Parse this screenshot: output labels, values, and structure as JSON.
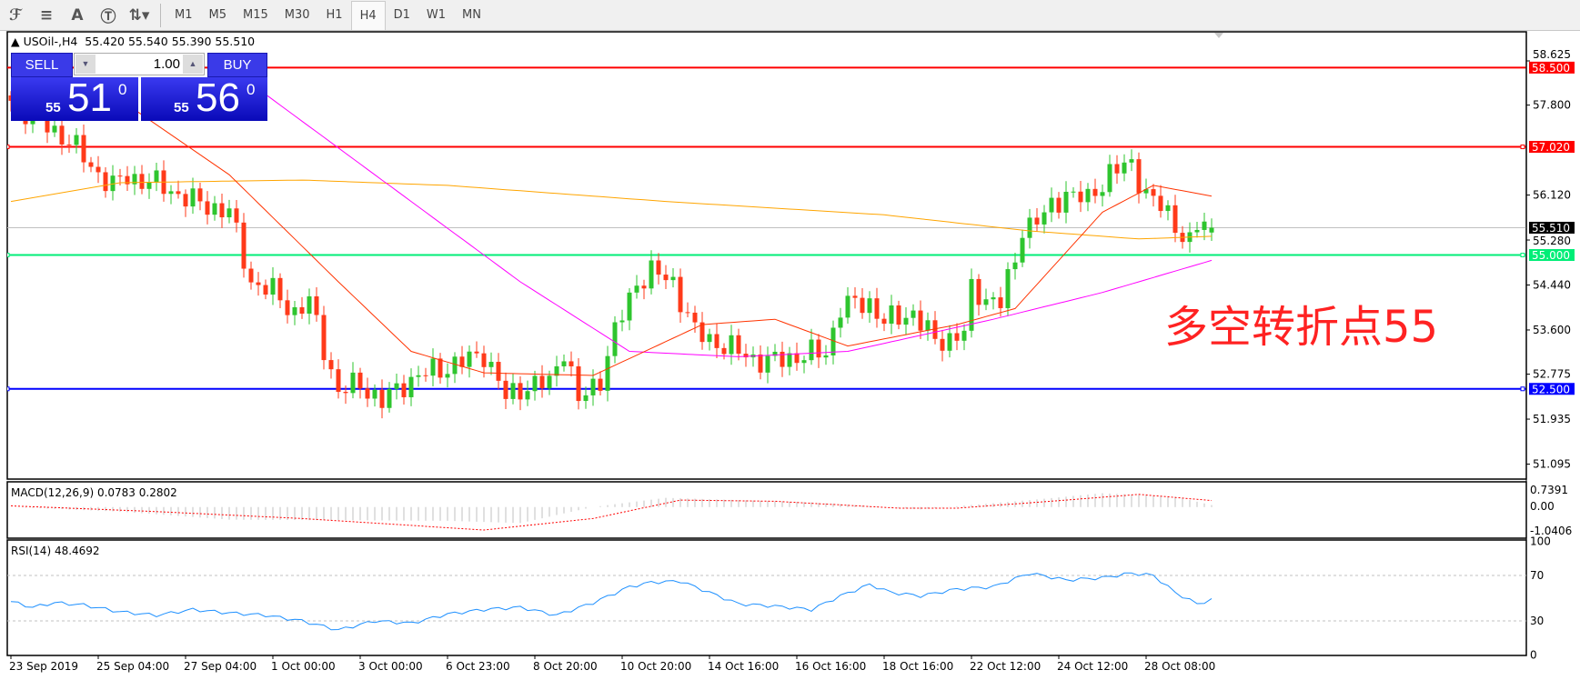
{
  "toolbar": {
    "icons": [
      "fibonacci-expansion-icon",
      "fibonacci-fan-icon",
      "text-icon",
      "text-label-icon",
      "arrows-icon"
    ],
    "timeframes": [
      "M1",
      "M5",
      "M15",
      "M30",
      "H1",
      "H4",
      "D1",
      "W1",
      "MN"
    ],
    "selected": "H4"
  },
  "header": {
    "symbol": "USOil-,H4",
    "ohlc": "55.420 55.540 55.390 55.510"
  },
  "trade": {
    "sell_label": "SELL",
    "buy_label": "BUY",
    "quantity": "1.00",
    "sell_prefix": "55",
    "sell_big": "51",
    "sell_sup": "0",
    "buy_prefix": "55",
    "buy_big": "56",
    "buy_sup": "0"
  },
  "annotation": "多空转折点55",
  "chart_data": {
    "type": "candlestick",
    "price_ticks": [
      "58.625",
      "57.800",
      "56.120",
      "55.280",
      "54.440",
      "53.600",
      "52.775",
      "51.935",
      "51.095"
    ],
    "time_labels": [
      "23 Sep 2019",
      "25 Sep 04:00",
      "27 Sep 04:00",
      "1 Oct 00:00",
      "3 Oct 00:00",
      "6 Oct 23:00",
      "8 Oct 20:00",
      "10 Oct 20:00",
      "14 Oct 16:00",
      "16 Oct 16:00",
      "18 Oct 16:00",
      "22 Oct 12:00",
      "24 Oct 12:00",
      "28 Oct 08:00"
    ],
    "bars_per_time_label": 12,
    "bar_count": 166,
    "close_checkpoints": [
      [
        0,
        57.88
      ],
      [
        8,
        57.13
      ],
      [
        11,
        56.66
      ],
      [
        14,
        56.28
      ],
      [
        16,
        56.47
      ],
      [
        21,
        56.28
      ],
      [
        25,
        56.0
      ],
      [
        30,
        55.81
      ],
      [
        33,
        54.5
      ],
      [
        36,
        54.31
      ],
      [
        39,
        53.93
      ],
      [
        41,
        54.12
      ],
      [
        45,
        52.43
      ],
      [
        48,
        52.61
      ],
      [
        51,
        52.24
      ],
      [
        54,
        52.61
      ],
      [
        58,
        52.84
      ],
      [
        62,
        52.99
      ],
      [
        65,
        53.18
      ],
      [
        68,
        52.33
      ],
      [
        70,
        52.52
      ],
      [
        74,
        52.61
      ],
      [
        76,
        53.27
      ],
      [
        78,
        52.24
      ],
      [
        81,
        52.71
      ],
      [
        83,
        53.55
      ],
      [
        86,
        54.5
      ],
      [
        88,
        54.68
      ],
      [
        91,
        54.5
      ],
      [
        94,
        53.55
      ],
      [
        97,
        53.37
      ],
      [
        100,
        53.18
      ],
      [
        104,
        52.99
      ],
      [
        107,
        53.09
      ],
      [
        112,
        53.18
      ],
      [
        114,
        54.03
      ],
      [
        118,
        54.12
      ],
      [
        120,
        53.74
      ],
      [
        124,
        53.93
      ],
      [
        127,
        53.37
      ],
      [
        131,
        53.55
      ],
      [
        132,
        54.31
      ],
      [
        136,
        54.12
      ],
      [
        138,
        54.87
      ],
      [
        139,
        55.53
      ],
      [
        142,
        55.72
      ],
      [
        145,
        56.19
      ],
      [
        148,
        56.0
      ],
      [
        151,
        56.56
      ],
      [
        154,
        56.66
      ],
      [
        156,
        56.19
      ],
      [
        159,
        55.72
      ],
      [
        162,
        55.25
      ],
      [
        163,
        55.53
      ],
      [
        165,
        55.51
      ]
    ],
    "last": {
      "open": 55.42,
      "high": 55.54,
      "low": 55.39,
      "close": 55.51
    },
    "moving_averages": [
      {
        "color": "#ffa500",
        "points": [
          [
            0,
            56.0
          ],
          [
            15,
            56.35
          ],
          [
            40,
            56.4
          ],
          [
            60,
            56.3
          ],
          [
            90,
            56.0
          ],
          [
            120,
            55.75
          ],
          [
            140,
            55.45
          ],
          [
            155,
            55.3
          ],
          [
            165,
            55.35
          ]
        ]
      },
      {
        "color": "#ff00ff",
        "points": [
          [
            28,
            58.7
          ],
          [
            50,
            56.5
          ],
          [
            70,
            54.5
          ],
          [
            85,
            53.2
          ],
          [
            100,
            53.1
          ],
          [
            115,
            53.2
          ],
          [
            135,
            53.8
          ],
          [
            150,
            54.3
          ],
          [
            165,
            54.9
          ]
        ]
      },
      {
        "color": "#ff3300",
        "points": [
          [
            15,
            57.9
          ],
          [
            30,
            56.5
          ],
          [
            45,
            54.5
          ],
          [
            55,
            53.2
          ],
          [
            65,
            52.8
          ],
          [
            80,
            52.75
          ],
          [
            95,
            53.7
          ],
          [
            105,
            53.8
          ],
          [
            115,
            53.3
          ],
          [
            130,
            53.7
          ],
          [
            138,
            54.0
          ],
          [
            150,
            55.8
          ],
          [
            157,
            56.3
          ],
          [
            165,
            56.1
          ]
        ]
      }
    ],
    "horizontal_lines": [
      {
        "price": "58.500",
        "color": "#ff0000"
      },
      {
        "price": "57.020",
        "color": "#ff0000"
      },
      {
        "price": "55.000",
        "color": "#00ee77"
      },
      {
        "price": "52.500",
        "color": "#0000ff"
      }
    ],
    "bid_line": {
      "price": "55.510",
      "color": "#000000"
    },
    "bull_color": "#2ec52e",
    "bear_color": "#ff3a1a",
    "macd": {
      "label": "MACD(12,26,9) 0.0783 0.2802",
      "ticks": [
        "0.7391",
        "0.00",
        "-1.0406"
      ],
      "hist": [
        [
          0,
          0
        ],
        [
          15,
          -0.2
        ],
        [
          30,
          -0.55
        ],
        [
          60,
          -0.6
        ],
        [
          70,
          -0.7
        ],
        [
          80,
          0
        ],
        [
          90,
          0.4
        ],
        [
          110,
          0.2
        ],
        [
          120,
          0
        ],
        [
          125,
          -0.1
        ],
        [
          140,
          0.3
        ],
        [
          150,
          0.6
        ],
        [
          160,
          0.45
        ],
        [
          165,
          0.08
        ]
      ],
      "signal": [
        [
          0,
          0.05
        ],
        [
          20,
          -0.2
        ],
        [
          40,
          -0.5
        ],
        [
          65,
          -1.0
        ],
        [
          80,
          -0.5
        ],
        [
          92,
          0.3
        ],
        [
          105,
          0.25
        ],
        [
          122,
          -0.05
        ],
        [
          130,
          -0.05
        ],
        [
          145,
          0.3
        ],
        [
          155,
          0.55
        ],
        [
          165,
          0.28
        ]
      ]
    },
    "rsi": {
      "label": "RSI(14) 48.4692",
      "ticks": [
        "100",
        "70",
        "30",
        "0"
      ],
      "levels": [
        70,
        30
      ],
      "points": [
        [
          0,
          47
        ],
        [
          3,
          42
        ],
        [
          6,
          46
        ],
        [
          10,
          44
        ],
        [
          15,
          38
        ],
        [
          20,
          35
        ],
        [
          25,
          40
        ],
        [
          30,
          37
        ],
        [
          35,
          35
        ],
        [
          40,
          30
        ],
        [
          45,
          22
        ],
        [
          50,
          30
        ],
        [
          55,
          28
        ],
        [
          60,
          36
        ],
        [
          65,
          40
        ],
        [
          70,
          42
        ],
        [
          75,
          35
        ],
        [
          80,
          46
        ],
        [
          85,
          60
        ],
        [
          88,
          64
        ],
        [
          92,
          65
        ],
        [
          96,
          55
        ],
        [
          100,
          45
        ],
        [
          105,
          43
        ],
        [
          110,
          40
        ],
        [
          114,
          52
        ],
        [
          118,
          62
        ],
        [
          121,
          55
        ],
        [
          125,
          52
        ],
        [
          130,
          58
        ],
        [
          135,
          60
        ],
        [
          140,
          72
        ],
        [
          145,
          66
        ],
        [
          150,
          68
        ],
        [
          154,
          72
        ],
        [
          157,
          70
        ],
        [
          160,
          55
        ],
        [
          163,
          45
        ],
        [
          165,
          48.5
        ]
      ]
    }
  }
}
